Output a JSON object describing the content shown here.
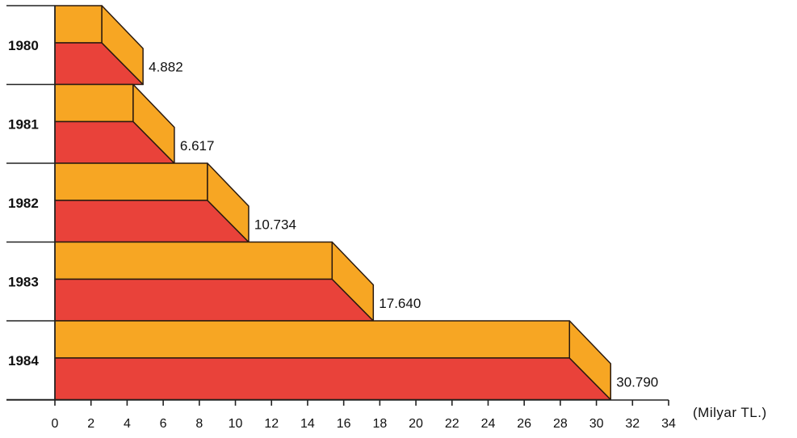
{
  "chart_data": {
    "type": "bar",
    "orientation": "horizontal",
    "style": "3d-stepped",
    "categories": [
      "1980",
      "1981",
      "1982",
      "1983",
      "1984"
    ],
    "values": [
      4.882,
      6.617,
      10.734,
      17.64,
      30.79
    ],
    "value_labels": [
      "4.882",
      "6.617",
      "10.734",
      "17.640",
      "30.790"
    ],
    "unit_label": "(Milyar TL.)",
    "xlim": [
      0,
      34
    ],
    "x_ticks": [
      0,
      2,
      4,
      6,
      8,
      10,
      12,
      14,
      16,
      18,
      20,
      22,
      24,
      26,
      28,
      30,
      32,
      34
    ],
    "grid": false,
    "colors": {
      "top_face": "#f7a623",
      "front_face": "#e9423a",
      "side_face": "#f7a623",
      "outline": "#2a1a10"
    }
  }
}
